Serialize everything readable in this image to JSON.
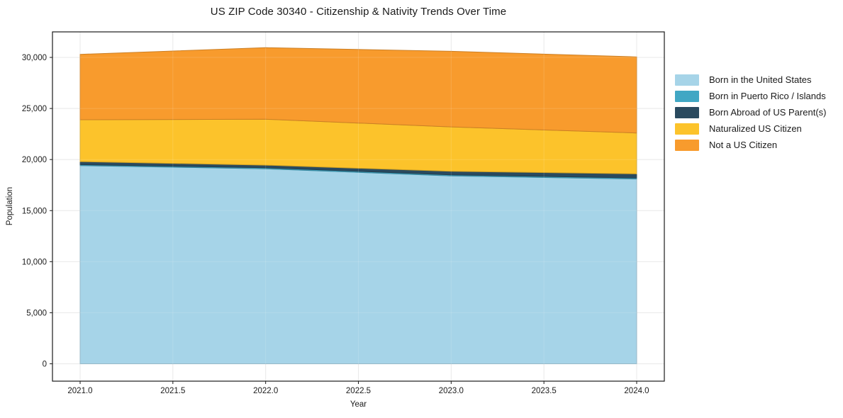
{
  "title": "US ZIP Code 30340 - Citizenship & Nativity Trends Over Time",
  "chart_data": {
    "type": "area",
    "stacked": true,
    "title": "US ZIP Code 30340 - Citizenship & Nativity Trends Over Time",
    "xlabel": "Year",
    "ylabel": "Population",
    "x": [
      2021,
      2022,
      2023,
      2024
    ],
    "series": [
      {
        "name": "Born in the United States",
        "color": "#a6d4e8",
        "values": [
          19400,
          19100,
          18400,
          18100
        ]
      },
      {
        "name": "Born in Puerto Rico / Islands",
        "color": "#41a7c4",
        "values": [
          100,
          100,
          100,
          100
        ]
      },
      {
        "name": "Born Abroad of US Parent(s)",
        "color": "#2a4a5f",
        "values": [
          300,
          250,
          350,
          400
        ]
      },
      {
        "name": "Naturalized US Citizen",
        "color": "#fcc32b",
        "values": [
          4100,
          4500,
          4350,
          4000
        ]
      },
      {
        "name": "Not a US Citizen",
        "color": "#f89b2d",
        "values": [
          6400,
          7000,
          7400,
          7450
        ]
      }
    ],
    "totals": [
      30300,
      30950,
      30600,
      30050
    ],
    "x_ticks": [
      2021.0,
      2021.5,
      2022.0,
      2022.5,
      2023.0,
      2023.5,
      2024.0
    ],
    "x_tick_labels": [
      "2021.0",
      "2021.5",
      "2022.0",
      "2022.5",
      "2023.0",
      "2023.5",
      "2024.0"
    ],
    "y_ticks": [
      0,
      5000,
      10000,
      15000,
      20000,
      25000,
      30000
    ],
    "y_tick_labels": [
      "0",
      "5,000",
      "10,000",
      "15,000",
      "20,000",
      "25,000",
      "30,000"
    ],
    "xlim": [
      2020.851,
      2024.149
    ],
    "ylim": [
      -1700,
      32500
    ],
    "grid": true,
    "legend_position": "right-outside",
    "colors": {
      "background": "#ffffff",
      "grid": "#e6e6e6",
      "spine": "#1a1a1a",
      "text": "#1a1a1a"
    }
  }
}
